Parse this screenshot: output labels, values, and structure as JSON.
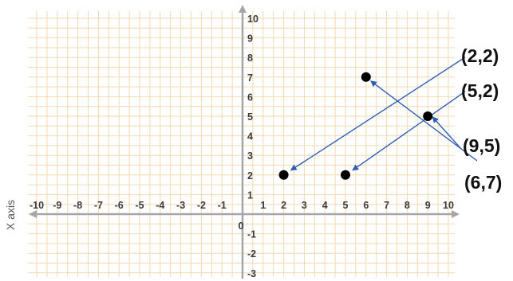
{
  "chart_data": {
    "type": "scatter",
    "title": "",
    "xlabel": "",
    "ylabel": "X axis",
    "xlim": [
      -10,
      10
    ],
    "ylim": [
      -3,
      10
    ],
    "grid": true,
    "x_ticks": [
      -10,
      -9,
      -8,
      -7,
      -6,
      -5,
      -4,
      -3,
      -2,
      -1,
      1,
      2,
      3,
      4,
      5,
      6,
      7,
      8,
      9,
      10
    ],
    "y_ticks": [
      10,
      9,
      8,
      7,
      6,
      5,
      4,
      3,
      2,
      1,
      -1,
      -2,
      -3
    ],
    "origin_label": "0",
    "points": [
      {
        "x": 2,
        "y": 2
      },
      {
        "x": 5,
        "y": 2
      },
      {
        "x": 6,
        "y": 7
      },
      {
        "x": 9,
        "y": 5
      }
    ],
    "annotations": [
      {
        "text": "(2,2)",
        "x": 2,
        "y": 2
      },
      {
        "text": "(5,2)",
        "x": 5,
        "y": 2
      },
      {
        "text": "(9,5)",
        "x": 9,
        "y": 5
      },
      {
        "text": "(6,7)",
        "x": 6,
        "y": 7
      }
    ],
    "colors": {
      "grid": "#f2d9b3",
      "axis": "#a6a6a6",
      "point": "#000000",
      "arrow": "#2f5fb3"
    }
  }
}
